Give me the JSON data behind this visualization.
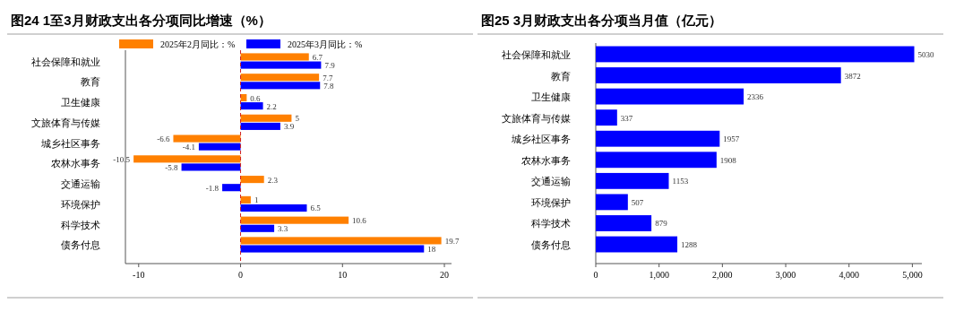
{
  "chart_data": [
    {
      "type": "bar",
      "orientation": "horizontal",
      "title": "图24 1至3月财政支出各分项同比增速（%）",
      "categories": [
        "社会保障和就业",
        "教育",
        "卫生健康",
        "文旅体育与传媒",
        "城乡社区事务",
        "农林水事务",
        "交通运输",
        "环境保护",
        "科学技术",
        "债务付息"
      ],
      "series": [
        {
          "name": "2025年2月同比：%",
          "color": "#ff8000",
          "values": [
            6.7,
            7.7,
            0.6,
            5,
            -6.6,
            -10.5,
            2.3,
            1,
            10.6,
            19.7
          ]
        },
        {
          "name": "2025年3月同比：%",
          "color": "#0000ff",
          "values": [
            7.9,
            7.8,
            2.2,
            3.9,
            -4.1,
            -5.8,
            -1.8,
            6.5,
            3.3,
            18
          ]
        }
      ],
      "xlim": [
        -11.3,
        20.7
      ],
      "xticks": [
        -10,
        0,
        10,
        20
      ],
      "ref_lines": [
        {
          "axis": "x",
          "value": 0,
          "color": "#d02020",
          "line_style": "dashed"
        }
      ],
      "data_labels": true,
      "legend": "top",
      "grid": false
    },
    {
      "type": "bar",
      "orientation": "horizontal",
      "title": "图25 3月财政支出各分项当月值（亿元）",
      "categories": [
        "社会保障和就业",
        "教育",
        "卫生健康",
        "文旅体育与传媒",
        "城乡社区事务",
        "农林水事务",
        "交通运输",
        "环境保护",
        "科学技术",
        "债务付息"
      ],
      "series": [
        {
          "color": "#0000ff",
          "values": [
            5030,
            3872,
            2336,
            337,
            1957,
            1908,
            1153,
            507,
            879,
            1288
          ]
        }
      ],
      "xlim": [
        0,
        5150
      ],
      "xticks": [
        0,
        {
          "value": 1000,
          "label": "1,000"
        },
        {
          "value": 2000,
          "label": "2,000"
        },
        {
          "value": 3000,
          "label": "3,000"
        },
        {
          "value": 4000,
          "label": "4,000"
        },
        {
          "value": 5000,
          "label": "5,000"
        }
      ],
      "data_labels": true,
      "grid": false
    }
  ]
}
